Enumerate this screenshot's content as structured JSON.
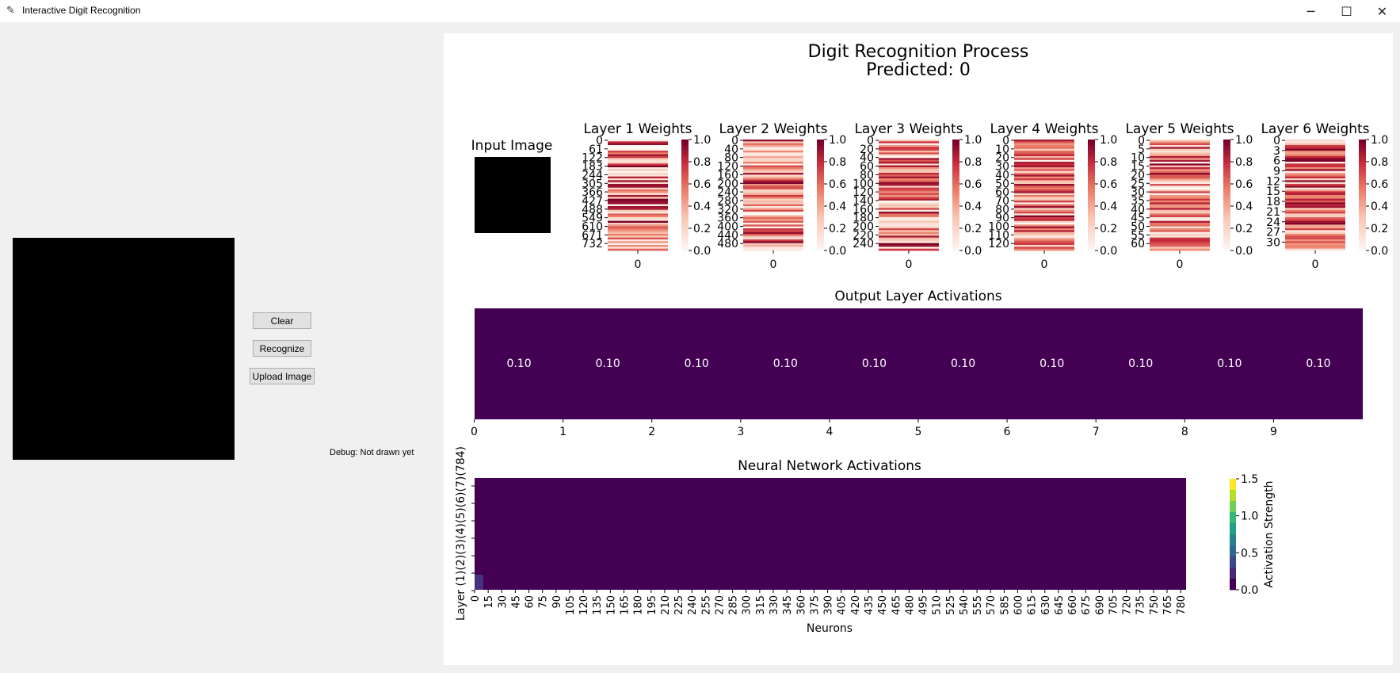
{
  "window": {
    "title": "Interactive Digit Recognition",
    "minimize": "─",
    "maximize": "☐",
    "close": "✕"
  },
  "controls": {
    "clear": "Clear",
    "recognize": "Recognize",
    "upload": "Upload Image",
    "debug": "Debug: Not drawn yet"
  },
  "figure": {
    "title": "Digit Recognition Process",
    "subtitle": "Predicted: 0",
    "input_title": "Input Image",
    "colorbar_ticks": [
      "1.0",
      "0.8",
      "0.6",
      "0.4",
      "0.2",
      "0.0"
    ],
    "weights": [
      {
        "title": "Layer 1 Weights",
        "xtick": "0",
        "ticks": [
          "0",
          "61",
          "122",
          "183",
          "244",
          "305",
          "366",
          "427",
          "488",
          "549",
          "610",
          "671",
          "732"
        ]
      },
      {
        "title": "Layer 2 Weights",
        "xtick": "0",
        "ticks": [
          "0",
          "40",
          "80",
          "120",
          "160",
          "200",
          "240",
          "280",
          "320",
          "360",
          "400",
          "440",
          "480"
        ]
      },
      {
        "title": "Layer 3 Weights",
        "xtick": "0",
        "ticks": [
          "0",
          "20",
          "40",
          "60",
          "80",
          "100",
          "120",
          "140",
          "160",
          "180",
          "200",
          "220",
          "240"
        ]
      },
      {
        "title": "Layer 4 Weights",
        "xtick": "0",
        "ticks": [
          "0",
          "10",
          "20",
          "30",
          "40",
          "50",
          "60",
          "70",
          "80",
          "90",
          "100",
          "110",
          "120"
        ]
      },
      {
        "title": "Layer 5 Weights",
        "xtick": "0",
        "ticks": [
          "0",
          "5",
          "10",
          "15",
          "20",
          "25",
          "30",
          "35",
          "40",
          "45",
          "50",
          "55",
          "60"
        ]
      },
      {
        "title": "Layer 6 Weights",
        "xtick": "0",
        "ticks": [
          "0",
          "3",
          "6",
          "9",
          "12",
          "15",
          "18",
          "21",
          "24",
          "27",
          "30"
        ]
      }
    ],
    "output": {
      "title": "Output Layer Activations",
      "values": [
        "0.10",
        "0.10",
        "0.10",
        "0.10",
        "0.10",
        "0.10",
        "0.10",
        "0.10",
        "0.10",
        "0.10"
      ],
      "xticks": [
        "0",
        "1",
        "2",
        "3",
        "4",
        "5",
        "6",
        "7",
        "8",
        "9"
      ]
    },
    "activations": {
      "title": "Neural Network Activations",
      "xlabel": "Neurons",
      "ylabel": "Layer (1)(2)(3)(4)(5)(6)(7)(784)",
      "xticks": [
        "0",
        "15",
        "30",
        "45",
        "60",
        "75",
        "90",
        "105",
        "120",
        "135",
        "150",
        "165",
        "180",
        "195",
        "210",
        "225",
        "240",
        "255",
        "270",
        "285",
        "300",
        "315",
        "330",
        "345",
        "360",
        "375",
        "390",
        "405",
        "420",
        "435",
        "450",
        "465",
        "480",
        "495",
        "510",
        "525",
        "540",
        "555",
        "570",
        "585",
        "600",
        "615",
        "630",
        "645",
        "660",
        "675",
        "690",
        "705",
        "720",
        "735",
        "750",
        "765",
        "780"
      ],
      "cbar_label": "Activation Strength",
      "cbar_ticks": [
        "1.5",
        "1.0",
        "0.5",
        "0.0"
      ]
    }
  },
  "colors": {
    "dark_purple": "#440154",
    "heat_low": "#fcf0ec",
    "heat_high": "#8b0022"
  }
}
